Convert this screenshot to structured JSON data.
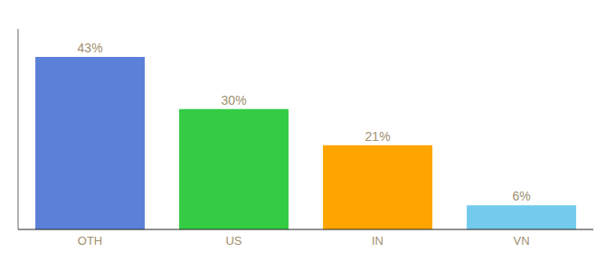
{
  "chart_data": {
    "type": "bar",
    "categories": [
      "OTH",
      "US",
      "IN",
      "VN"
    ],
    "values": [
      43,
      30,
      21,
      6
    ],
    "value_labels": [
      "43%",
      "30%",
      "21%",
      "6%"
    ],
    "colors": [
      "#5B80D8",
      "#33CC44",
      "#FFA500",
      "#72CAED"
    ],
    "ylim": [
      0,
      50
    ],
    "data_labels": true,
    "tick_labels": "x"
  }
}
